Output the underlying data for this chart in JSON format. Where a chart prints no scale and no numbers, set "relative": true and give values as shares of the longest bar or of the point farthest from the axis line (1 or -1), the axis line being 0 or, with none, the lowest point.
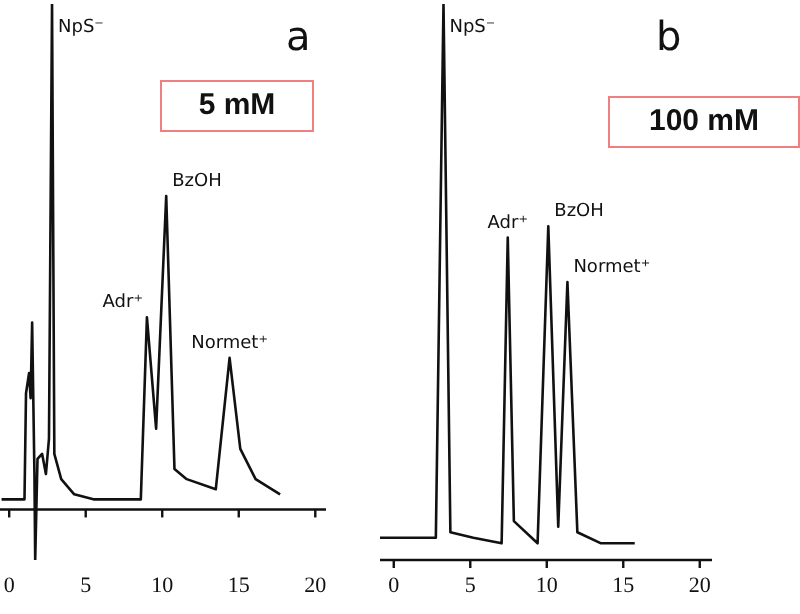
{
  "chart_data": [
    {
      "type": "line",
      "title": "a",
      "subtitle": "5 mM",
      "relative": true,
      "xlim": [
        -0.6,
        20.7
      ],
      "xticks": [
        0,
        5,
        10,
        15,
        20
      ],
      "legend": false,
      "marker": "none",
      "grid": false,
      "series": [
        {
          "color": "#111111",
          "x": [
            -0.5,
            1.0,
            1.1,
            1.3,
            1.4,
            1.5,
            1.65,
            1.7,
            1.85,
            2.15,
            2.4,
            2.6,
            2.8,
            2.95,
            3.4,
            4.25,
            5.5,
            8.6,
            9.0,
            9.6,
            10.26,
            10.8,
            11.6,
            13.5,
            14.4,
            15.1,
            16.1,
            17.7
          ],
          "values": [
            0.02,
            0.02,
            0.23,
            0.27,
            0.22,
            0.37,
            0.07,
            -0.1,
            0.1,
            0.11,
            0.07,
            0.14,
            1.0,
            0.11,
            0.06,
            0.03,
            0.02,
            0.02,
            0.38,
            0.16,
            0.62,
            0.08,
            0.06,
            0.04,
            0.3,
            0.12,
            0.06,
            0.03
          ]
        }
      ],
      "annotations": [
        {
          "text": "NpS⁻",
          "x": 2.8,
          "y": 1.0
        },
        {
          "text": "Adr⁺",
          "x": 9.0,
          "y": 0.38
        },
        {
          "text": "BzOH",
          "x": 10.26,
          "y": 0.62
        },
        {
          "text": "Normet⁺",
          "x": 14.4,
          "y": 0.3
        }
      ]
    },
    {
      "type": "line",
      "title": "b",
      "subtitle": "100 mM",
      "relative": true,
      "xlim": [
        -0.9,
        20.8
      ],
      "xticks": [
        0,
        5,
        10,
        15,
        20
      ],
      "legend": false,
      "marker": "none",
      "grid": false,
      "series": [
        {
          "color": "#111111",
          "x": [
            -0.9,
            1.45,
            2.75,
            3.25,
            3.7,
            5.2,
            7.05,
            7.45,
            7.85,
            9.4,
            10.1,
            10.75,
            11.35,
            12.0,
            13.55,
            15.75
          ],
          "values": [
            0.04,
            0.04,
            0.04,
            1.0,
            0.05,
            0.04,
            0.03,
            0.58,
            0.07,
            0.03,
            0.6,
            0.06,
            0.5,
            0.05,
            0.03,
            0.03
          ]
        }
      ],
      "annotations": [
        {
          "text": "NpS⁻",
          "x": 3.25,
          "y": 1.0
        },
        {
          "text": "Adr⁺",
          "x": 7.45,
          "y": 0.58
        },
        {
          "text": "BzOH",
          "x": 10.1,
          "y": 0.6
        },
        {
          "text": "Normet⁺",
          "x": 11.35,
          "y": 0.5
        }
      ]
    }
  ]
}
